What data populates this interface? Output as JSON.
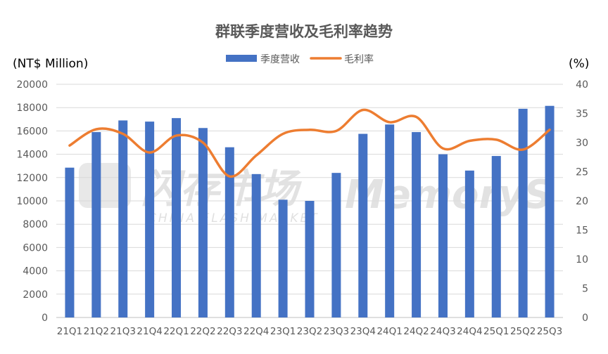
{
  "chart_data": {
    "type": "bar",
    "title": "群联季度营收及毛利率趋势",
    "left_axis_unit": "(NT$ Million)",
    "right_axis_unit": "(%)",
    "categories": [
      "21Q1",
      "21Q2",
      "21Q3",
      "21Q4",
      "22Q1",
      "22Q2",
      "22Q3",
      "22Q4",
      "23Q1",
      "23Q2",
      "23Q3",
      "23Q4",
      "24Q1",
      "24Q2",
      "24Q3",
      "24Q4",
      "25Q1",
      "25Q2",
      "25Q3"
    ],
    "series": [
      {
        "name": "季度营收",
        "type": "bar",
        "axis": "left",
        "color": "#4472C4",
        "values": [
          12850,
          15900,
          16900,
          16800,
          17100,
          16250,
          14600,
          12300,
          10100,
          10000,
          12400,
          15750,
          16550,
          15900,
          14000,
          12600,
          13850,
          17900,
          18150
        ]
      },
      {
        "name": "毛利率",
        "type": "line",
        "axis": "right",
        "color": "#ED7D31",
        "values": [
          29.5,
          32.3,
          31.5,
          28.3,
          31.2,
          30.0,
          24.2,
          27.8,
          31.5,
          32.2,
          32.0,
          35.6,
          33.5,
          34.4,
          29.0,
          30.3,
          30.5,
          28.8,
          32.2
        ]
      }
    ],
    "y_left": {
      "min": 0,
      "max": 20000,
      "ticks": [
        0,
        2000,
        4000,
        6000,
        8000,
        10000,
        12000,
        14000,
        16000,
        18000,
        20000
      ]
    },
    "y_right": {
      "min": 0,
      "max": 40,
      "ticks": [
        0,
        5,
        10,
        15,
        20,
        25,
        30,
        35,
        40
      ]
    },
    "grid": true,
    "legend_position": "top-center"
  },
  "watermark": {
    "text_cn": "闪存市场",
    "text_en": "CHINA FLASH MARKET",
    "text_brand": "MemoryS"
  }
}
